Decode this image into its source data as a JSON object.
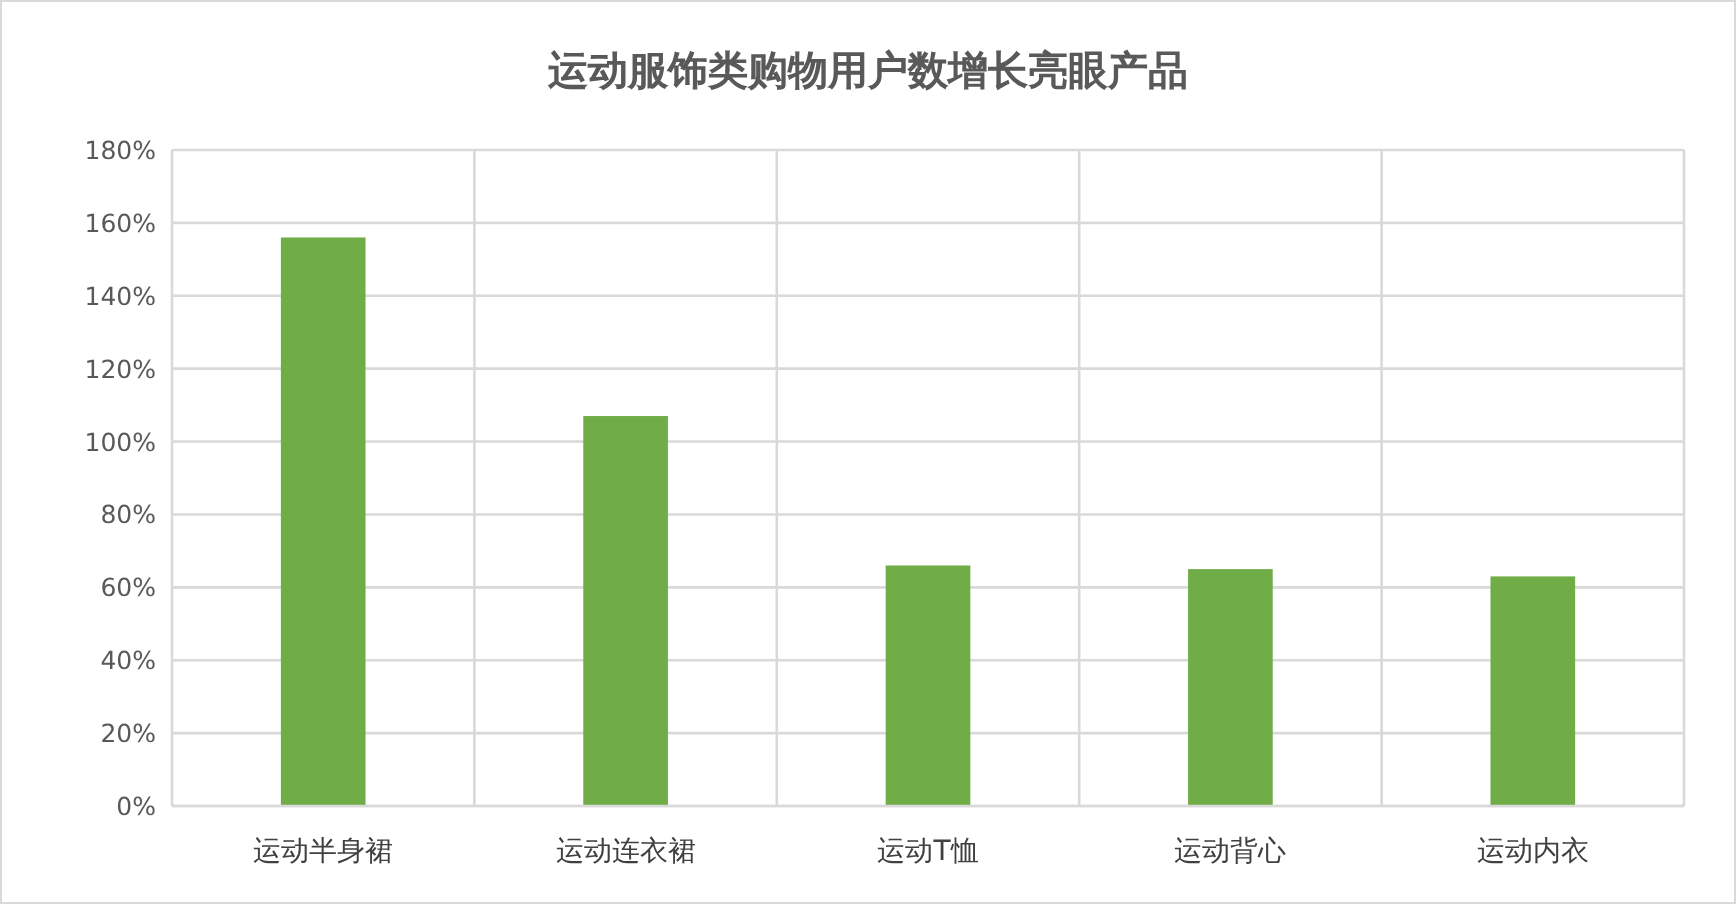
{
  "chart_data": {
    "type": "bar",
    "title": "运动服饰类购物用户数增长亮眼产品",
    "categories": [
      "运动半身裙",
      "运动连衣裙",
      "运动T恤",
      "运动背心",
      "运动内衣"
    ],
    "values": [
      156,
      107,
      66,
      65,
      63
    ],
    "color": "#70ad47",
    "ylim": [
      0,
      180
    ],
    "yticks": [
      {
        "value": 0,
        "label": "0%"
      },
      {
        "value": 20,
        "label": "20%"
      },
      {
        "value": 40,
        "label": "40%"
      },
      {
        "value": 60,
        "label": "60%"
      },
      {
        "value": 80,
        "label": "80%"
      },
      {
        "value": 100,
        "label": "100%"
      },
      {
        "value": 120,
        "label": "120%"
      },
      {
        "value": 140,
        "label": "140%"
      },
      {
        "value": 160,
        "label": "160%"
      },
      {
        "value": 180,
        "label": "180%"
      }
    ],
    "grid": true
  }
}
